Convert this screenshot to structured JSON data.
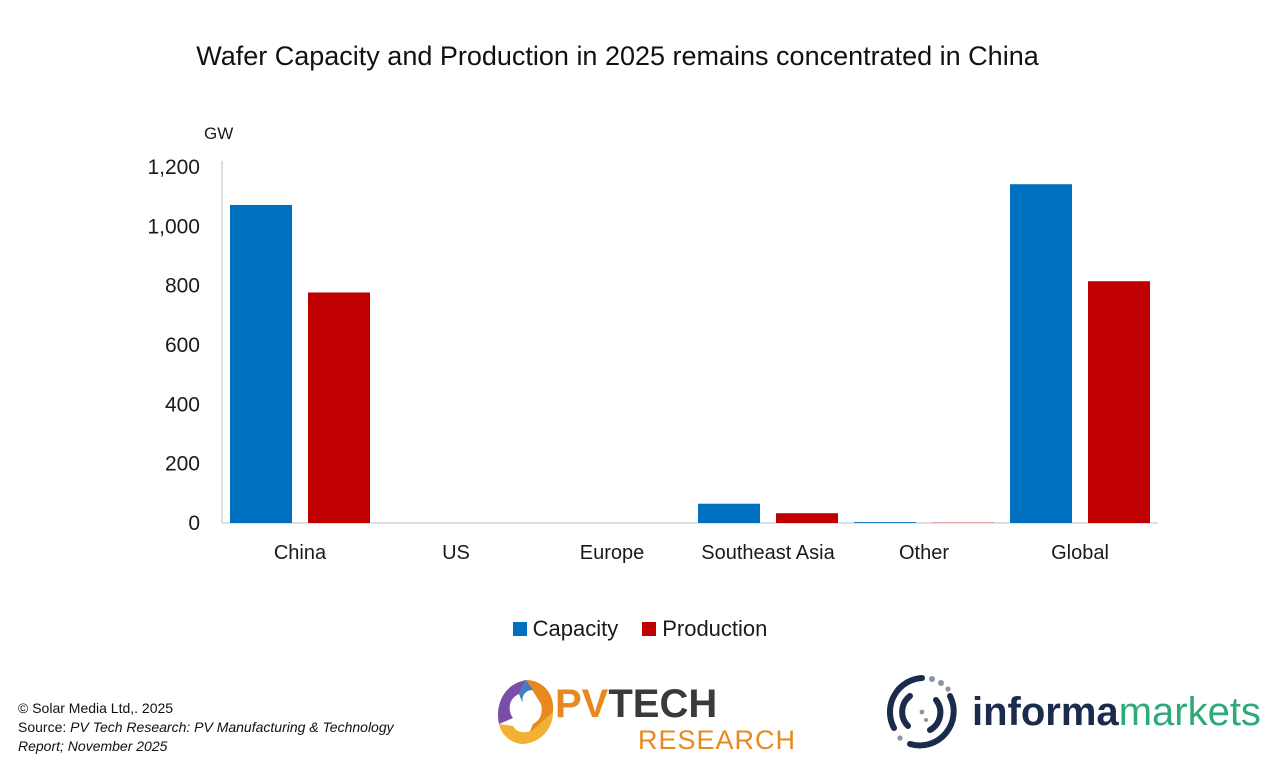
{
  "chart_data": {
    "type": "bar",
    "title": "Wafer Capacity and Production in 2025 remains concentrated in China",
    "ylabel": "GW",
    "categories": [
      "China",
      "US",
      "Europe",
      "Southeast Asia",
      "Other",
      "Global"
    ],
    "series": [
      {
        "name": "Capacity",
        "color": "#0070c0",
        "values": [
          1072,
          0,
          0,
          65,
          3,
          1142
        ]
      },
      {
        "name": "Production",
        "color": "#c00000",
        "values": [
          777,
          0,
          0,
          33,
          1,
          815
        ]
      }
    ],
    "ylim": [
      0,
      1200
    ],
    "yticks": [
      0,
      200,
      400,
      600,
      800,
      1000,
      1200
    ],
    "ytick_labels": [
      "0",
      "200",
      "400",
      "600",
      "800",
      "1,000",
      "1,200"
    ],
    "grid": false,
    "legend_position": "bottom"
  },
  "footer": {
    "copyright": "© Solar Media Ltd,. 2025",
    "source_prefix": "Source: ",
    "source_italic": "PV Tech Research: PV Manufacturing & Technology Report; November 2025"
  },
  "logos": {
    "pvtech": {
      "pv": "PV",
      "tech": "TECH",
      "sub": "RESEARCH"
    },
    "informa": {
      "informa": "informa",
      "markets": "markets"
    }
  }
}
